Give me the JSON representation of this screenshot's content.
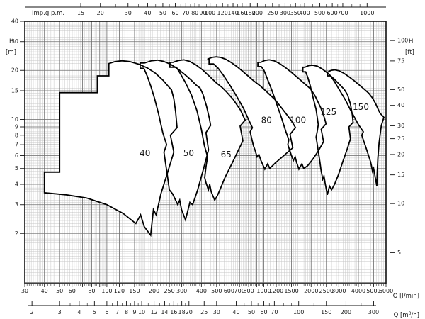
{
  "page": {
    "background": "#ffffff",
    "ink": "#111111",
    "grid_minor_color": "#c7c7c7",
    "grid_major_color": "#6f6f6f",
    "envelope_fill": "#ffffff",
    "envelope_stroke": "#000000"
  },
  "chart_data": {
    "type": "area",
    "title": "",
    "description": "Pump family coverage envelopes (head H vs flow Q) on log-log axes",
    "legend_position": "none",
    "grid": "on",
    "axes": {
      "top": {
        "title": "Imp.g.p.m.",
        "lmin_per_unit": 4.54609,
        "ticks": [
          15,
          20,
          30,
          40,
          50,
          60,
          70,
          80,
          90,
          100,
          120,
          140,
          160,
          180,
          200,
          250,
          300,
          350,
          400,
          500,
          600,
          700,
          1000
        ],
        "minor_ticks": [
          25,
          35,
          45,
          55,
          65,
          75,
          85,
          95,
          110,
          130,
          150,
          170,
          190,
          225,
          275,
          325,
          375,
          450,
          550,
          650,
          800,
          900
        ]
      },
      "bottom_lmin": {
        "title": "Q [l/min]",
        "range": [
          30,
          6000
        ],
        "ticks": [
          30,
          40,
          50,
          60,
          80,
          100,
          120,
          150,
          200,
          250,
          300,
          400,
          500,
          600,
          700,
          800,
          1000,
          1200,
          1500,
          2000,
          2500,
          3000,
          4000,
          5000,
          6000
        ]
      },
      "bottom_m3h": {
        "title_prefix": "Q [m",
        "title_sup": "3",
        "title_suffix": "/h]",
        "lmin_per_unit": 16.6667,
        "ticks": [
          2,
          3,
          4,
          5,
          6,
          7,
          8,
          9,
          10,
          12,
          14,
          16,
          18,
          20,
          25,
          30,
          40,
          50,
          60,
          70,
          100,
          150,
          200,
          300
        ],
        "minor_ticks": [
          2.5,
          3.5,
          4.5,
          5.5,
          6.5,
          7.5,
          8.5,
          9.5,
          11,
          13,
          15,
          17,
          19,
          35,
          45,
          55,
          65,
          80,
          90,
          125,
          250
        ]
      },
      "left": {
        "title": "H",
        "unit": "[m]",
        "range": [
          0.985,
          40
        ],
        "ticks": [
          40,
          30,
          20,
          15,
          10,
          9,
          8,
          7,
          6,
          5,
          4,
          3,
          2
        ],
        "extra_major_lines": [
          15
        ]
      },
      "right": {
        "title": "H",
        "unit": "[ft]",
        "m_per_ft": 0.3048,
        "ticks": [
          100,
          75,
          50,
          40,
          30,
          25,
          20,
          15,
          10,
          5
        ]
      },
      "extra_major_x_lines": [
        120,
        150,
        250,
        1200,
        1500,
        2500
      ]
    },
    "series": [
      {
        "name": "40",
        "label_q": 175,
        "label_h": 6.2,
        "polygon": [
          [
            50,
            14.6
          ],
          [
            87,
            14.6
          ],
          [
            87,
            18.5
          ],
          [
            103,
            18.5
          ],
          [
            103,
            22
          ],
          [
            112,
            22.6
          ],
          [
            125,
            22.9
          ],
          [
            141,
            22.6
          ],
          [
            160,
            21.8
          ],
          [
            181,
            20.7
          ],
          [
            204,
            19.2
          ],
          [
            228,
            17.4
          ],
          [
            247,
            15.9
          ],
          [
            258,
            15.2
          ],
          [
            267,
            13.4
          ],
          [
            274,
            11.2
          ],
          [
            280,
            8.9
          ],
          [
            254,
            8.0
          ],
          [
            267,
            6.3
          ],
          [
            243,
            4.7
          ],
          [
            221,
            3.5
          ],
          [
            206,
            2.6
          ],
          [
            198,
            2.8
          ],
          [
            190,
            1.95
          ],
          [
            173,
            2.2
          ],
          [
            164,
            2.6
          ],
          [
            153,
            2.3
          ],
          [
            127,
            2.65
          ],
          [
            100,
            3.0
          ],
          [
            74,
            3.3
          ],
          [
            55,
            3.45
          ],
          [
            40,
            3.55
          ],
          [
            40,
            4.75
          ],
          [
            50,
            4.75
          ]
        ]
      },
      {
        "name": "50",
        "label_q": 332,
        "label_h": 6.2,
        "polygon": [
          [
            174,
            22.2
          ],
          [
            192,
            22.9
          ],
          [
            210,
            23.1
          ],
          [
            230,
            22.7
          ],
          [
            254,
            21.8
          ],
          [
            282,
            20.5
          ],
          [
            313,
            18.9
          ],
          [
            345,
            17.4
          ],
          [
            372,
            16.2
          ],
          [
            392,
            15.6
          ],
          [
            409,
            14.3
          ],
          [
            431,
            12.1
          ],
          [
            449,
            10.2
          ],
          [
            458,
            9.2
          ],
          [
            428,
            8.3
          ],
          [
            444,
            6.5
          ],
          [
            411,
            4.9
          ],
          [
            379,
            3.7
          ],
          [
            352,
            3.0
          ],
          [
            338,
            3.1
          ],
          [
            317,
            2.42
          ],
          [
            299,
            2.8
          ],
          [
            291,
            3.2
          ],
          [
            283,
            3.0
          ],
          [
            262,
            3.5
          ],
          [
            250,
            3.7
          ],
          [
            243,
            4.5
          ],
          [
            231,
            6.3
          ],
          [
            240,
            7.0
          ],
          [
            227,
            8.3
          ],
          [
            213,
            10.9
          ],
          [
            201,
            13.5
          ],
          [
            190,
            16.1
          ],
          [
            181,
            18.4
          ],
          [
            172,
            20.6
          ],
          [
            163,
            20.6
          ],
          [
            163,
            22.2
          ]
        ]
      },
      {
        "name": "65",
        "label_q": 575,
        "label_h": 6.1,
        "polygon": [
          [
            264,
            22.4
          ],
          [
            286,
            23.0
          ],
          [
            310,
            23.2
          ],
          [
            337,
            22.7
          ],
          [
            370,
            21.6
          ],
          [
            408,
            20.1
          ],
          [
            450,
            18.4
          ],
          [
            497,
            16.8
          ],
          [
            542,
            15.7
          ],
          [
            580,
            14.7
          ],
          [
            640,
            13.2
          ],
          [
            710,
            11.4
          ],
          [
            760,
            9.9
          ],
          [
            706,
            9.1
          ],
          [
            735,
            7.4
          ],
          [
            640,
            5.6
          ],
          [
            565,
            4.4
          ],
          [
            525,
            3.7
          ],
          [
            505,
            3.4
          ],
          [
            486,
            3.2
          ],
          [
            462,
            3.6
          ],
          [
            452,
            4.0
          ],
          [
            443,
            3.7
          ],
          [
            428,
            4.1
          ],
          [
            420,
            4.4
          ],
          [
            430,
            5.3
          ],
          [
            438,
            5.9
          ],
          [
            418,
            6.9
          ],
          [
            400,
            8.7
          ],
          [
            375,
            11.3
          ],
          [
            345,
            14.2
          ],
          [
            315,
            17.0
          ],
          [
            292,
            19.3
          ],
          [
            277,
            20.9
          ],
          [
            252,
            20.9
          ],
          [
            252,
            22.4
          ]
        ]
      },
      {
        "name": "80",
        "label_q": 1040,
        "label_h": 9.9,
        "polygon": [
          [
            437,
            23.4
          ],
          [
            466,
            24.0
          ],
          [
            497,
            24.2
          ],
          [
            532,
            24.0
          ],
          [
            572,
            23.4
          ],
          [
            622,
            22.3
          ],
          [
            682,
            20.9
          ],
          [
            762,
            19.1
          ],
          [
            852,
            17.4
          ],
          [
            952,
            16.0
          ],
          [
            1032,
            14.9
          ],
          [
            1180,
            13.2
          ],
          [
            1350,
            11.2
          ],
          [
            1500,
            9.8
          ],
          [
            1590,
            8.9
          ],
          [
            1468,
            8.1
          ],
          [
            1528,
            6.7
          ],
          [
            1340,
            6.0
          ],
          [
            1180,
            5.4
          ],
          [
            1090,
            5.0
          ],
          [
            1058,
            5.35
          ],
          [
            1014,
            4.95
          ],
          [
            958,
            5.6
          ],
          [
            930,
            6.1
          ],
          [
            906,
            5.9
          ],
          [
            878,
            6.5
          ],
          [
            858,
            6.9
          ],
          [
            838,
            7.6
          ],
          [
            818,
            8.4
          ],
          [
            846,
            8.9
          ],
          [
            806,
            9.8
          ],
          [
            742,
            11.7
          ],
          [
            670,
            13.9
          ],
          [
            606,
            16.3
          ],
          [
            552,
            18.7
          ],
          [
            510,
            20.7
          ],
          [
            478,
            21.9
          ],
          [
            448,
            21.9
          ],
          [
            448,
            23.4
          ]
        ]
      },
      {
        "name": "100",
        "label_q": 1650,
        "label_h": 9.9,
        "polygon": [
          [
            955,
            22.4
          ],
          [
            1012,
            23.0
          ],
          [
            1082,
            23.2
          ],
          [
            1162,
            22.9
          ],
          [
            1262,
            22.0
          ],
          [
            1382,
            20.7
          ],
          [
            1532,
            19.1
          ],
          [
            1702,
            17.5
          ],
          [
            1852,
            16.3
          ],
          [
            1982,
            15.4
          ],
          [
            2122,
            13.9
          ],
          [
            2302,
            11.8
          ],
          [
            2432,
            10.2
          ],
          [
            2490,
            9.4
          ],
          [
            2320,
            8.7
          ],
          [
            2400,
            7.3
          ],
          [
            2220,
            6.4
          ],
          [
            2050,
            5.7
          ],
          [
            1900,
            5.2
          ],
          [
            1795,
            5.0
          ],
          [
            1748,
            5.35
          ],
          [
            1672,
            4.95
          ],
          [
            1612,
            5.5
          ],
          [
            1582,
            5.9
          ],
          [
            1542,
            5.6
          ],
          [
            1492,
            6.1
          ],
          [
            1422,
            7.0
          ],
          [
            1442,
            7.5
          ],
          [
            1382,
            8.4
          ],
          [
            1292,
            10.3
          ],
          [
            1202,
            12.6
          ],
          [
            1122,
            15.2
          ],
          [
            1052,
            17.8
          ],
          [
            1002,
            20.0
          ],
          [
            962,
            21.1
          ],
          [
            916,
            21.1
          ],
          [
            916,
            22.4
          ]
        ]
      },
      {
        "name": "125",
        "label_q": 2580,
        "label_h": 11.1,
        "polygon": [
          [
            1825,
            20.9
          ],
          [
            1932,
            21.4
          ],
          [
            2052,
            21.5
          ],
          [
            2192,
            21.2
          ],
          [
            2352,
            20.4
          ],
          [
            2552,
            19.2
          ],
          [
            2802,
            17.7
          ],
          [
            3052,
            16.3
          ],
          [
            3252,
            15.3
          ],
          [
            3422,
            14.1
          ],
          [
            3562,
            12.4
          ],
          [
            3662,
            10.6
          ],
          [
            3700,
            9.6
          ],
          [
            3480,
            9.0
          ],
          [
            3560,
            7.6
          ],
          [
            3380,
            6.5
          ],
          [
            3180,
            5.5
          ],
          [
            2990,
            4.6
          ],
          [
            2820,
            4.0
          ],
          [
            2700,
            3.7
          ],
          [
            2620,
            3.9
          ],
          [
            2537,
            3.45
          ],
          [
            2452,
            4.1
          ],
          [
            2416,
            4.5
          ],
          [
            2372,
            4.3
          ],
          [
            2312,
            4.9
          ],
          [
            2282,
            5.4
          ],
          [
            2222,
            6.4
          ],
          [
            2152,
            7.8
          ],
          [
            2182,
            8.3
          ],
          [
            2222,
            9.3
          ],
          [
            2152,
            11.5
          ],
          [
            2052,
            13.8
          ],
          [
            1972,
            16.2
          ],
          [
            1902,
            18.2
          ],
          [
            1846,
            19.6
          ],
          [
            1772,
            19.6
          ],
          [
            1772,
            20.9
          ]
        ]
      },
      {
        "name": "150",
        "label_q": 4150,
        "label_h": 11.9,
        "polygon": [
          [
            2545,
            19.5
          ],
          [
            2682,
            20.0
          ],
          [
            2832,
            20.15
          ],
          [
            3002,
            19.9
          ],
          [
            3202,
            19.3
          ],
          [
            3452,
            18.4
          ],
          [
            3752,
            17.3
          ],
          [
            4102,
            16.1
          ],
          [
            4402,
            15.2
          ],
          [
            4652,
            14.5
          ],
          [
            4902,
            13.6
          ],
          [
            5152,
            12.5
          ],
          [
            5352,
            11.5
          ],
          [
            5502,
            10.9
          ],
          [
            5815,
            10.3
          ],
          [
            5602,
            9.2
          ],
          [
            5422,
            7.2
          ],
          [
            5322,
            5.8
          ],
          [
            5262,
            4.6
          ],
          [
            5240,
            3.9
          ],
          [
            5082,
            4.6
          ],
          [
            5002,
            5.0
          ],
          [
            4922,
            4.8
          ],
          [
            4842,
            5.2
          ],
          [
            4782,
            5.5
          ],
          [
            4452,
            6.8
          ],
          [
            4202,
            8.0
          ],
          [
            4302,
            8.4
          ],
          [
            4002,
            9.3
          ],
          [
            3602,
            11.2
          ],
          [
            3302,
            13.2
          ],
          [
            3002,
            15.4
          ],
          [
            2802,
            17.2
          ],
          [
            2652,
            18.5
          ],
          [
            2545,
            18.5
          ]
        ]
      }
    ]
  }
}
